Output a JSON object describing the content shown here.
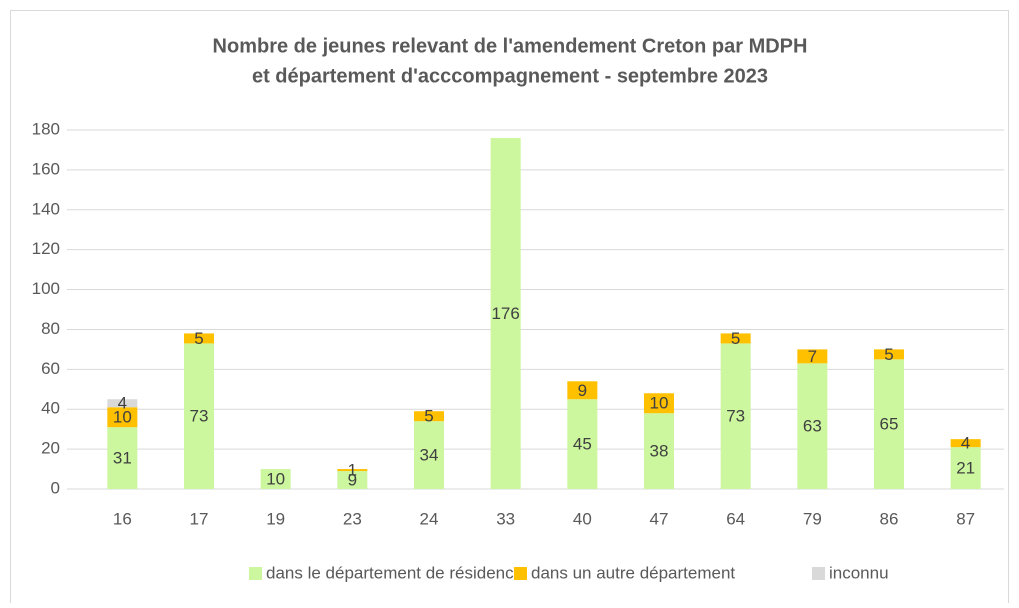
{
  "chart_data": {
    "type": "stacked_bar",
    "title": [
      "Nombre de jeunes relevant de l'amendement Creton par MDPH",
      "et département d'acccompagnement - septembre 2023"
    ],
    "categories": [
      "16",
      "17",
      "19",
      "23",
      "24",
      "33",
      "40",
      "47",
      "64",
      "79",
      "86",
      "87"
    ],
    "series": [
      {
        "name": "dans le département de résidence",
        "color": "#ccf79e",
        "values": [
          31,
          73,
          10,
          9,
          34,
          176,
          45,
          38,
          73,
          63,
          65,
          21
        ]
      },
      {
        "name": "dans un autre département",
        "color": "#ffc000",
        "values": [
          10,
          5,
          null,
          1,
          5,
          null,
          9,
          10,
          5,
          7,
          5,
          4
        ]
      },
      {
        "name": "inconnu",
        "color": "#d9d9d9",
        "values": [
          4,
          null,
          null,
          null,
          null,
          null,
          null,
          null,
          null,
          null,
          null,
          null
        ]
      }
    ],
    "ylim": [
      0,
      180
    ],
    "yticks": [
      0,
      20,
      40,
      60,
      80,
      100,
      120,
      140,
      160,
      180
    ],
    "grid": true,
    "legend": "bottom"
  }
}
